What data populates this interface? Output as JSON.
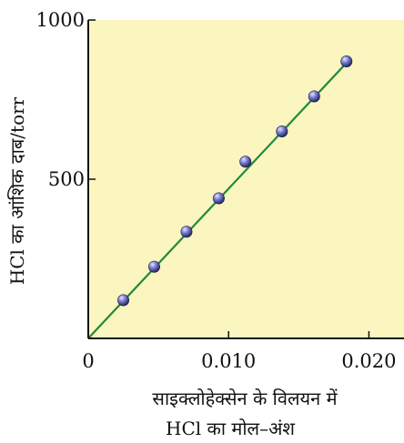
{
  "chart_data": {
    "type": "scatter",
    "title": "",
    "xlabel_line1": "साइक्लोहेक्सेन के विलयन में",
    "xlabel_line2": "HCl का मोल–अंश",
    "ylabel": "HCl का आंशिक दाब/torr",
    "xlim": [
      0,
      0.0225
    ],
    "ylim": [
      0,
      1000
    ],
    "x_ticks": [
      0,
      0.01,
      0.02
    ],
    "x_tick_labels": [
      "0",
      "0.010",
      "0.020"
    ],
    "y_ticks": [
      500,
      1000
    ],
    "y_tick_labels": [
      "500",
      "1000"
    ],
    "grid": false,
    "background_color": "#fbf5bf",
    "line_color": "#1f8a3c",
    "point_color": "#3a3d8c",
    "fit_line": {
      "x": [
        0,
        0.0185
      ],
      "y": [
        0,
        870
      ]
    },
    "series": [
      {
        "x": [
          0.0025,
          0.0047,
          0.007,
          0.0093,
          0.0112,
          0.0138,
          0.0161,
          0.0184
        ],
        "y": [
          120,
          225,
          335,
          440,
          555,
          650,
          760,
          870
        ]
      }
    ]
  }
}
